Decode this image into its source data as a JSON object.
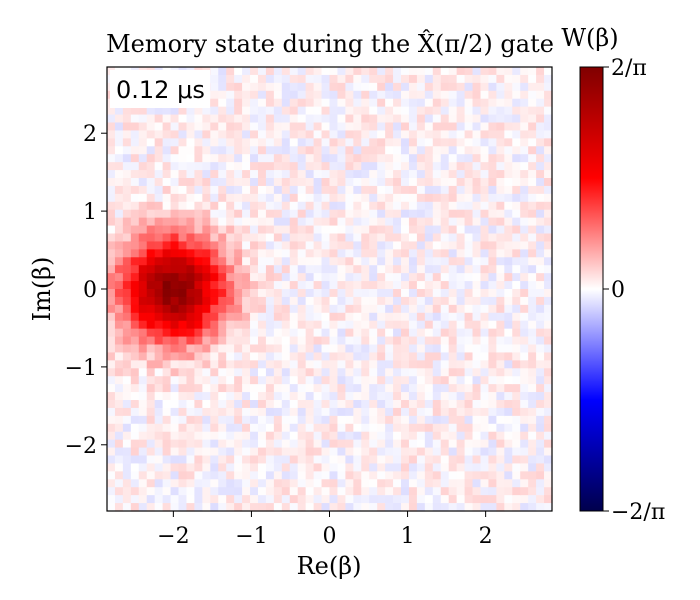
{
  "chart_data": {
    "type": "heatmap",
    "title": "Memory state during the X̂(π/2) gate",
    "annotation": "0.12 μs",
    "xlabel": "Re(β)",
    "ylabel": "Im(β)",
    "xlim": [
      -2.85,
      2.85
    ],
    "ylim": [
      -2.85,
      2.85
    ],
    "x_ticks": [
      -2,
      -1,
      0,
      1,
      2
    ],
    "x_tick_labels": [
      "−2",
      "−1",
      "0",
      "1",
      "2"
    ],
    "y_ticks": [
      -2,
      -1,
      0,
      1,
      2
    ],
    "y_tick_labels": [
      "−2",
      "−1",
      "0",
      "1",
      "2"
    ],
    "grid": false,
    "colormap": "seismic",
    "colorbar": {
      "label": "W(β)",
      "min": -0.6366,
      "max": 0.6366,
      "ticks": [
        -0.6366,
        0,
        0.6366
      ],
      "tick_labels": [
        "−2/π",
        "0",
        "2/π"
      ]
    },
    "grid_size": 56,
    "features": [
      {
        "type": "gaussian_blob",
        "center_re": -2.0,
        "center_im": 0.0,
        "peak": 0.6,
        "sigma": 0.45
      },
      {
        "type": "noise",
        "amplitude": 0.05
      }
    ]
  },
  "colors": {
    "cmap_neg_end": "#00004c",
    "cmap_neg_mid": "#0000ff",
    "cmap_zero": "#ffffff",
    "cmap_pos_mid": "#ff0000",
    "cmap_pos_end": "#800000"
  }
}
